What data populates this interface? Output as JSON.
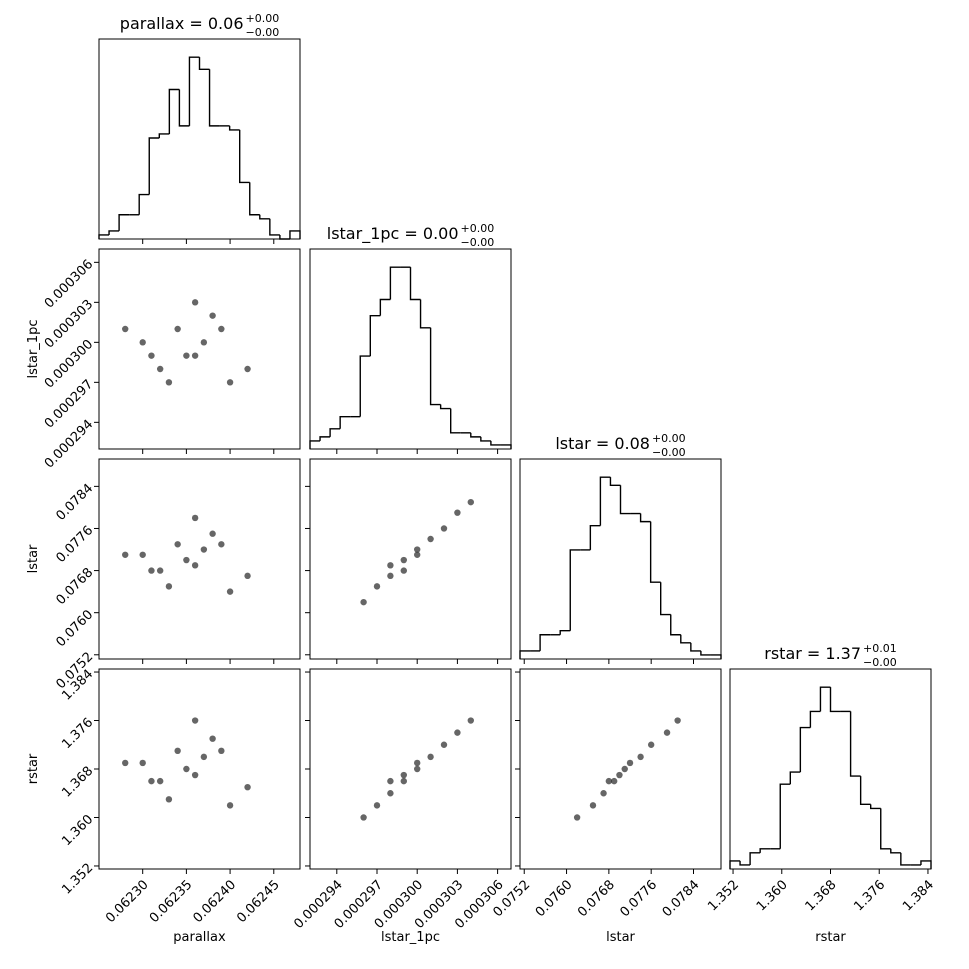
{
  "chart_data": [
    {
      "type": "histogram",
      "title": "parallax = 0.06",
      "title_sup": "+0.00",
      "title_sub": "−0.00",
      "bins": [
        0.06225,
        0.0622615,
        0.062273,
        0.0622845,
        0.062296,
        0.0623075,
        0.062319,
        0.0623305,
        0.062342,
        0.0623535,
        0.062365,
        0.0623765,
        0.062388,
        0.0623995,
        0.062411,
        0.0624225,
        0.062434,
        0.0624455,
        0.062457,
        0.0624685,
        0.06248
      ],
      "counts": [
        1,
        2,
        6,
        6,
        11,
        25,
        26,
        37,
        28,
        45,
        42,
        28,
        28,
        27,
        14,
        6,
        5,
        1,
        0,
        2
      ],
      "xlim": [
        0.06225,
        0.06248
      ],
      "ylim": [
        0,
        49.5
      ]
    },
    {
      "type": "scatter",
      "ylabel": "lstar_1pc",
      "x": [
        0.0623,
        0.06232,
        0.06234,
        0.06236,
        0.06238,
        0.0624,
        0.06233,
        0.06237,
        0.06235,
        0.06239,
        0.06231,
        0.06236,
        0.06242,
        0.06228
      ],
      "y": [
        0.0003,
        0.000298,
        0.000301,
        0.000299,
        0.000302,
        0.000297,
        0.000297,
        0.0003,
        0.000299,
        0.000301,
        0.000299,
        0.000303,
        0.000298,
        0.000301
      ],
      "xlim": [
        0.06225,
        0.06248
      ],
      "ylim": [
        0.000292,
        0.000307
      ],
      "yticks": [
        0.000294,
        0.000297,
        {
          "value": 0.0003,
          "label": "0.000300"
        },
        0.000303,
        0.000306
      ]
    },
    {
      "type": "histogram",
      "title": "lstar_1pc = 0.00",
      "title_sup": "+0.00",
      "title_sub": "−0.00",
      "bins": [
        0.000292,
        0.00029275,
        0.0002935,
        0.00029425,
        0.000295,
        0.00029575,
        0.0002965,
        0.00029725,
        0.000298,
        0.00029875,
        0.0002995,
        0.00030025,
        0.000301,
        0.00030175,
        0.0003025,
        0.00030325,
        0.000304,
        0.00030475,
        0.0003055,
        0.00030625,
        0.000307
      ],
      "counts": [
        2,
        3,
        5,
        8,
        8,
        23,
        33,
        37,
        45,
        45,
        37,
        30,
        11,
        10,
        4,
        4,
        3,
        2,
        1,
        1
      ],
      "xlim": [
        0.000292,
        0.000307
      ],
      "ylim": [
        0,
        49.5
      ]
    },
    {
      "type": "scatter",
      "ylabel": "lstar",
      "x": [
        0.0623,
        0.06232,
        0.06234,
        0.06236,
        0.06238,
        0.0624,
        0.06233,
        0.06237,
        0.06235,
        0.06239,
        0.06231,
        0.06236,
        0.06242,
        0.06228
      ],
      "y": [
        0.0771,
        0.0768,
        0.0773,
        0.0769,
        0.0775,
        0.0764,
        0.0765,
        0.0772,
        0.077,
        0.0773,
        0.0768,
        0.0778,
        0.0767,
        0.0771
      ],
      "xlim": [
        0.06225,
        0.06248
      ],
      "ylim": [
        0.07512,
        0.07892
      ],
      "yticks": [
        0.0752,
        {
          "value": 0.076,
          "label": "0.0760"
        },
        0.0768,
        0.0776,
        0.0784
      ]
    },
    {
      "type": "scatter",
      "x": [
        0.000296,
        0.000297,
        0.000298,
        0.000298,
        0.000299,
        0.000299,
        0.0003,
        0.0003,
        0.000301,
        0.000302,
        0.000303,
        0.000304
      ],
      "y": [
        0.0762,
        0.0765,
        0.0767,
        0.0769,
        0.077,
        0.0768,
        0.0772,
        0.0771,
        0.0774,
        0.0776,
        0.0779,
        0.0781
      ],
      "xlim": [
        0.000292,
        0.000307
      ],
      "ylim": [
        0.07512,
        0.07892
      ]
    },
    {
      "type": "histogram",
      "title": "lstar = 0.08",
      "title_sup": "+0.00",
      "title_sub": "−0.00",
      "bins": [
        0.07512,
        0.07531,
        0.0755,
        0.07569,
        0.07588,
        0.07607,
        0.07626,
        0.07645,
        0.07664,
        0.07683,
        0.07702,
        0.07721,
        0.0774,
        0.07759,
        0.07778,
        0.07797,
        0.07816,
        0.07835,
        0.07854,
        0.07873,
        0.07892
      ],
      "counts": [
        2,
        2,
        6,
        6,
        7,
        27,
        27,
        33,
        45,
        43,
        36,
        36,
        34,
        19,
        11,
        6,
        4,
        2,
        1,
        1
      ],
      "xlim": [
        0.07512,
        0.07892
      ],
      "ylim": [
        0,
        49.5
      ]
    },
    {
      "type": "scatter",
      "ylabel": "rstar",
      "xlabel": "parallax",
      "x": [
        0.0623,
        0.06232,
        0.06234,
        0.06236,
        0.06238,
        0.0624,
        0.06233,
        0.06237,
        0.06235,
        0.06239,
        0.06231,
        0.06236,
        0.06242,
        0.06228
      ],
      "y": [
        1.369,
        1.366,
        1.371,
        1.367,
        1.373,
        1.362,
        1.363,
        1.37,
        1.368,
        1.371,
        1.366,
        1.376,
        1.365,
        1.369
      ],
      "xlim": [
        0.06225,
        0.06248
      ],
      "ylim": [
        1.3515,
        1.3845
      ],
      "xticks": [
        {
          "value": 0.0623,
          "label": "0.06230"
        },
        0.06235,
        {
          "value": 0.0624,
          "label": "0.06240"
        },
        0.06245
      ],
      "yticks": [
        1.352,
        {
          "value": 1.36,
          "label": "1.360"
        },
        1.368,
        1.376,
        1.384
      ]
    },
    {
      "type": "scatter",
      "xlabel": "lstar_1pc",
      "x": [
        0.000296,
        0.000297,
        0.000298,
        0.000298,
        0.000299,
        0.000299,
        0.0003,
        0.0003,
        0.000301,
        0.000302,
        0.000303,
        0.000304
      ],
      "y": [
        1.36,
        1.362,
        1.364,
        1.366,
        1.367,
        1.366,
        1.369,
        1.368,
        1.37,
        1.372,
        1.374,
        1.376
      ],
      "xlim": [
        0.000292,
        0.000307
      ],
      "ylim": [
        1.3515,
        1.3845
      ],
      "xticks": [
        0.000294,
        0.000297,
        {
          "value": 0.0003,
          "label": "0.000300"
        },
        0.000303,
        0.000306
      ]
    },
    {
      "type": "scatter",
      "xlabel": "lstar",
      "x": [
        0.0762,
        0.0765,
        0.0767,
        0.0769,
        0.077,
        0.0768,
        0.0772,
        0.0771,
        0.0774,
        0.0776,
        0.0779,
        0.0781
      ],
      "y": [
        1.36,
        1.362,
        1.364,
        1.366,
        1.367,
        1.366,
        1.369,
        1.368,
        1.37,
        1.372,
        1.374,
        1.376
      ],
      "xlim": [
        0.07512,
        0.07892
      ],
      "ylim": [
        1.3515,
        1.3845
      ],
      "xticks": [
        0.0752,
        {
          "value": 0.076,
          "label": "0.0760"
        },
        0.0768,
        0.0776,
        0.0784
      ]
    },
    {
      "type": "histogram",
      "title": "rstar = 1.37",
      "title_sup": "+0.01",
      "title_sub": "−0.00",
      "xlabel": "rstar",
      "bins": [
        1.3515,
        1.35315,
        1.3548,
        1.35645,
        1.3581,
        1.35975,
        1.3614,
        1.36305,
        1.3647,
        1.36635,
        1.368,
        1.36965,
        1.3713,
        1.37295,
        1.3746,
        1.37625,
        1.3779,
        1.37955,
        1.3812,
        1.38285,
        1.3845
      ],
      "counts": [
        2,
        1,
        4,
        5,
        5,
        21,
        24,
        35,
        39,
        45,
        39,
        39,
        23,
        16,
        15,
        5,
        4,
        1,
        1,
        2
      ],
      "xlim": [
        1.3515,
        1.3845
      ],
      "ylim": [
        0,
        49.5
      ],
      "xticks": [
        1.352,
        {
          "value": 1.36,
          "label": "1.360"
        },
        1.368,
        1.376,
        1.384
      ]
    }
  ]
}
